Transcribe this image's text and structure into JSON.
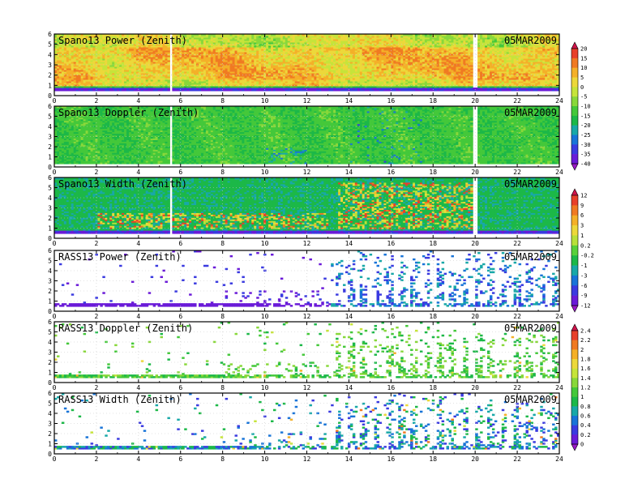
{
  "chart_data": [
    {
      "type": "heatmap",
      "title": "Spano13 Power (Zenith)",
      "date": "05MAR2009",
      "x_ticks": [
        "0",
        "2",
        "4",
        "6",
        "8",
        "10",
        "12",
        "14",
        "16",
        "18",
        "20",
        "22",
        "24"
      ],
      "y_ticks": [
        "0",
        "1",
        "2",
        "3",
        "4",
        "5",
        "6"
      ],
      "xlim": [
        0,
        24
      ],
      "ylim": [
        0,
        6
      ],
      "profile": "power",
      "colorbar": "a"
    },
    {
      "type": "heatmap",
      "title": "Spano13 Doppler (Zenith)",
      "date": "05MAR2009",
      "x_ticks": [
        "0",
        "2",
        "4",
        "6",
        "8",
        "10",
        "12",
        "14",
        "16",
        "18",
        "20",
        "22",
        "24"
      ],
      "y_ticks": [
        "0",
        "1",
        "2",
        "3",
        "4",
        "5",
        "6"
      ],
      "xlim": [
        0,
        24
      ],
      "ylim": [
        0,
        6
      ],
      "profile": "doppler",
      "colorbar": "a"
    },
    {
      "type": "heatmap",
      "title": "Spano13 Width (Zenith)",
      "date": "05MAR2009",
      "x_ticks": [
        "0",
        "2",
        "4",
        "6",
        "8",
        "10",
        "12",
        "14",
        "16",
        "18",
        "20",
        "22",
        "24"
      ],
      "y_ticks": [
        "0",
        "1",
        "2",
        "3",
        "4",
        "5",
        "6"
      ],
      "xlim": [
        0,
        24
      ],
      "ylim": [
        0,
        6
      ],
      "profile": "width",
      "colorbar": "b"
    },
    {
      "type": "heatmap",
      "title": "RASS13 Power (Zenith)",
      "date": "05MAR2009",
      "x_ticks": [
        "0",
        "2",
        "4",
        "6",
        "8",
        "10",
        "12",
        "14",
        "16",
        "18",
        "20",
        "22",
        "24"
      ],
      "y_ticks": [
        "0",
        "1",
        "2",
        "3",
        "4",
        "5",
        "6"
      ],
      "xlim": [
        0,
        24
      ],
      "ylim": [
        0,
        6
      ],
      "profile": "rass_power",
      "colorbar": "b"
    },
    {
      "type": "heatmap",
      "title": "RASS13 Doppler (Zenith)",
      "date": "05MAR2009",
      "x_ticks": [
        "0",
        "2",
        "4",
        "6",
        "8",
        "10",
        "12",
        "14",
        "16",
        "18",
        "20",
        "22",
        "24"
      ],
      "y_ticks": [
        "0",
        "1",
        "2",
        "3",
        "4",
        "5",
        "6"
      ],
      "xlim": [
        0,
        24
      ],
      "ylim": [
        0,
        6
      ],
      "profile": "rass_doppler",
      "colorbar": "c"
    },
    {
      "type": "heatmap",
      "title": "RASS13 Width (Zenith)",
      "date": "05MAR2009",
      "x_ticks": [
        "0",
        "2",
        "4",
        "6",
        "8",
        "10",
        "12",
        "14",
        "16",
        "18",
        "20",
        "22",
        "24"
      ],
      "y_ticks": [
        "0",
        "1",
        "2",
        "3",
        "4",
        "5",
        "6"
      ],
      "xlim": [
        0,
        24
      ],
      "ylim": [
        0,
        6
      ],
      "profile": "rass_width",
      "colorbar": "c"
    }
  ],
  "colorbars": {
    "a": {
      "labels": [
        "20",
        "15",
        "10",
        "5",
        "0",
        "-5",
        "-10",
        "-15",
        "-20",
        "-25",
        "-30",
        "-35",
        "-40"
      ],
      "colors": [
        "#d0144a",
        "#e8402a",
        "#f07a22",
        "#f4b028",
        "#ecd83a",
        "#c6e43a",
        "#88d83a",
        "#44c83a",
        "#1cb848",
        "#18a8a8",
        "#1874d8",
        "#3a3ae0",
        "#6a1ad8",
        "#9a18c8"
      ]
    },
    "b": {
      "labels": [
        "12",
        "9",
        "6",
        "3",
        "1",
        "0.2",
        "-0.2",
        "-1",
        "-3",
        "-6",
        "-9",
        "-12"
      ],
      "colors": [
        "#d0144a",
        "#e8402a",
        "#f07a22",
        "#f4b028",
        "#ecd83a",
        "#b8e03a",
        "#58d03a",
        "#1cb848",
        "#18a8a8",
        "#1874d8",
        "#3a3ae0",
        "#6a1ad8",
        "#9a18c8"
      ]
    },
    "c": {
      "labels": [
        "2.4",
        "2.2",
        "2",
        "1.8",
        "1.6",
        "1.4",
        "1.2",
        "1",
        "0.8",
        "0.6",
        "0.4",
        "0.2",
        "0"
      ],
      "colors": [
        "#d0144a",
        "#e8402a",
        "#f07a22",
        "#f4b028",
        "#ecd83a",
        "#c6e43a",
        "#88d83a",
        "#44c83a",
        "#1cb848",
        "#18a8a8",
        "#1874d8",
        "#3a3ae0",
        "#6a1ad8",
        "#9a18c8"
      ]
    }
  }
}
